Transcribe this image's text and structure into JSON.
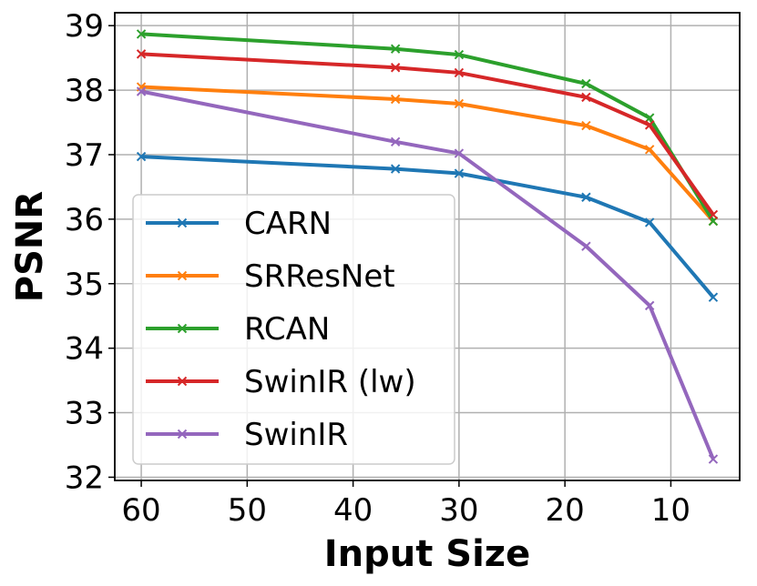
{
  "chart_data": {
    "type": "line",
    "title": "",
    "xlabel": "Input Size",
    "ylabel": "PSNR",
    "xlim": [
      62.5,
      3.5
    ],
    "ylim": [
      31.95,
      39.2
    ],
    "xticks": [
      60,
      50,
      40,
      30,
      20,
      10
    ],
    "xtick_labels": [
      "60",
      "50",
      "40",
      "30",
      "20",
      "10"
    ],
    "yticks": [
      32,
      33,
      34,
      35,
      36,
      37,
      38,
      39
    ],
    "ytick_labels": [
      "32",
      "33",
      "34",
      "35",
      "36",
      "37",
      "38",
      "39"
    ],
    "grid": true,
    "legend_position": "lower-left",
    "x": [
      60,
      36,
      30,
      18,
      12,
      6
    ],
    "series": [
      {
        "name": "CARN",
        "color": "#1f77b4",
        "values": [
          36.97,
          36.78,
          36.71,
          36.34,
          35.95,
          34.79
        ]
      },
      {
        "name": "SRResNet",
        "color": "#ff7f0e",
        "values": [
          38.05,
          37.86,
          37.79,
          37.45,
          37.08,
          35.97
        ]
      },
      {
        "name": "RCAN",
        "color": "#2ca02c",
        "values": [
          38.87,
          38.64,
          38.55,
          38.1,
          37.57,
          35.97
        ]
      },
      {
        "name": "SwinIR (lw)",
        "color": "#d62728",
        "values": [
          38.56,
          38.35,
          38.27,
          37.89,
          37.46,
          36.07
        ]
      },
      {
        "name": "SwinIR",
        "color": "#9467bd",
        "values": [
          37.98,
          37.2,
          37.02,
          35.58,
          34.66,
          32.28
        ]
      }
    ]
  }
}
